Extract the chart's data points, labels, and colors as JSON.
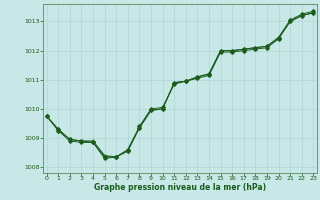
{
  "background_color": "#c8e8e8",
  "grid_color": "#b0d4d4",
  "line_color": "#1a5c1a",
  "xlabel": "Graphe pression niveau de la mer (hPa)",
  "xlim": [
    -0.3,
    23.3
  ],
  "ylim": [
    1007.8,
    1013.6
  ],
  "yticks": [
    1008,
    1009,
    1010,
    1011,
    1012,
    1013
  ],
  "xticks": [
    0,
    1,
    2,
    3,
    4,
    5,
    6,
    7,
    8,
    9,
    10,
    11,
    12,
    13,
    14,
    15,
    16,
    17,
    18,
    19,
    20,
    21,
    22,
    23
  ],
  "series1_x": [
    0,
    1,
    2,
    3,
    4,
    5,
    6,
    7,
    8,
    9,
    10,
    11,
    12,
    13,
    14,
    15,
    16,
    17,
    18,
    19,
    20,
    21,
    22,
    23
  ],
  "series1_y": [
    1009.75,
    1009.3,
    1008.95,
    1008.9,
    1008.85,
    1008.35,
    1008.35,
    1008.55,
    1009.35,
    1009.95,
    1010.0,
    1010.9,
    1010.95,
    1011.05,
    1011.15,
    1011.95,
    1011.95,
    1012.0,
    1012.05,
    1012.1,
    1012.4,
    1013.0,
    1013.2,
    1013.3
  ],
  "series2_x": [
    0,
    1,
    2,
    3,
    4,
    5,
    6,
    7,
    8,
    9,
    10,
    11,
    12,
    13,
    14,
    15,
    16,
    17,
    18,
    19,
    20,
    21,
    22,
    23
  ],
  "series2_y": [
    1009.75,
    1009.25,
    1008.9,
    1008.85,
    1008.85,
    1008.3,
    1008.35,
    1008.6,
    1009.4,
    1010.0,
    1010.05,
    1010.85,
    1010.95,
    1011.1,
    1011.2,
    1012.0,
    1012.0,
    1012.05,
    1012.1,
    1012.15,
    1012.45,
    1013.05,
    1013.25,
    1013.35
  ],
  "series3_x": [
    0,
    1,
    2,
    3,
    4,
    5,
    6,
    7,
    8,
    9,
    10,
    11,
    12,
    13,
    14,
    15,
    16,
    17,
    18,
    19,
    20,
    21,
    22,
    23
  ],
  "series3_y": [
    1009.75,
    1009.3,
    1008.95,
    1008.9,
    1008.9,
    1008.4,
    1008.35,
    1008.6,
    1009.35,
    1009.95,
    1010.0,
    1010.9,
    1010.95,
    1011.1,
    1011.2,
    1012.0,
    1012.0,
    1012.05,
    1012.1,
    1012.15,
    1012.45,
    1013.0,
    1013.2,
    1013.3
  ],
  "xlabel_fontsize": 5.5,
  "tick_fontsize": 4.5,
  "tick_color": "#1a5c1a",
  "spine_color": "#5a8a5a"
}
